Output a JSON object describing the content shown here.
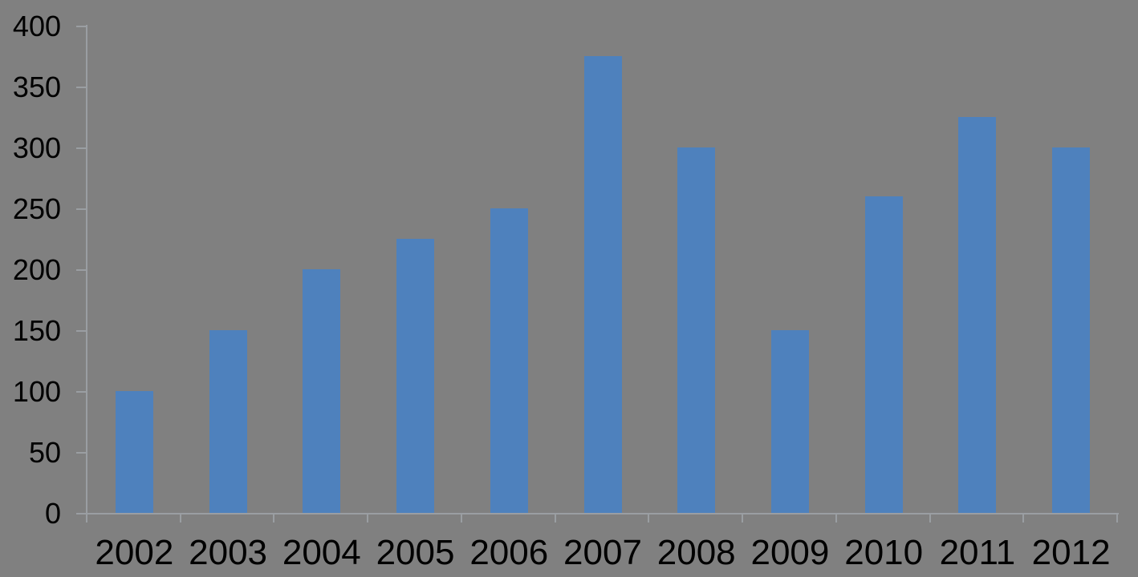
{
  "chart_data": {
    "type": "bar",
    "title": "",
    "xlabel": "",
    "ylabel": "",
    "categories": [
      "2002",
      "2003",
      "2004",
      "2005",
      "2006",
      "2007",
      "2008",
      "2009",
      "2010",
      "2011",
      "2012"
    ],
    "values": [
      100,
      150,
      200,
      225,
      250,
      375,
      300,
      150,
      260,
      325,
      300
    ],
    "ylim": [
      0,
      400
    ],
    "ytick_interval": 50,
    "ytick_labels": [
      "0",
      "50",
      "100",
      "150",
      "200",
      "250",
      "300",
      "350",
      "400"
    ],
    "grid": "off",
    "legend_position": "none",
    "colors": {
      "background": "#808080",
      "bar": "#4e81bd",
      "axis": "#9a9ea2",
      "text": "#000000"
    }
  }
}
